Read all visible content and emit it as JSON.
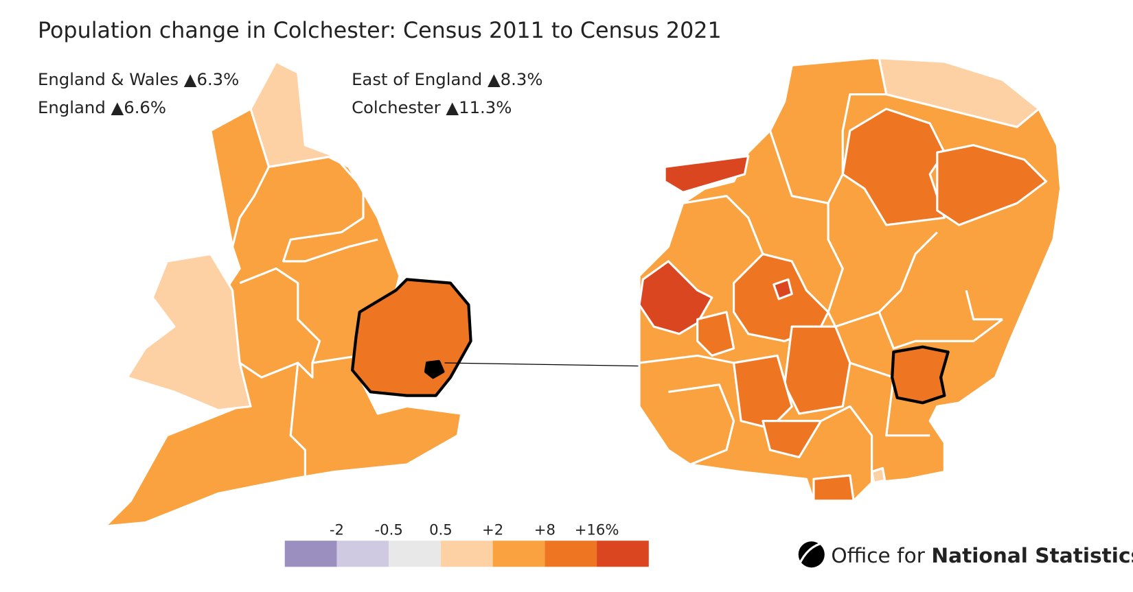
{
  "header": {
    "title": "Population change in Colchester: Census 2011 to Census 2021"
  },
  "stats": [
    {
      "name": "England & Wales",
      "change": "▲6.3%"
    },
    {
      "name": "England",
      "change": "▲6.6%"
    },
    {
      "name": "East of England",
      "change": "▲8.3%"
    },
    {
      "name": "Colchester",
      "change": "▲11.3%"
    }
  ],
  "legend": {
    "labels": [
      "-2",
      "-0.5",
      "0.5",
      "+2",
      "+8",
      "+16%"
    ],
    "colors": [
      "#9a8fbf",
      "#cfc9e2",
      "#e8e8e8",
      "#fdd1a4",
      "#f9a23f",
      "#ee7623",
      "#d9461f"
    ]
  },
  "logo": {
    "text_plain": "Office for",
    "text_bold": "National Statistics"
  }
}
